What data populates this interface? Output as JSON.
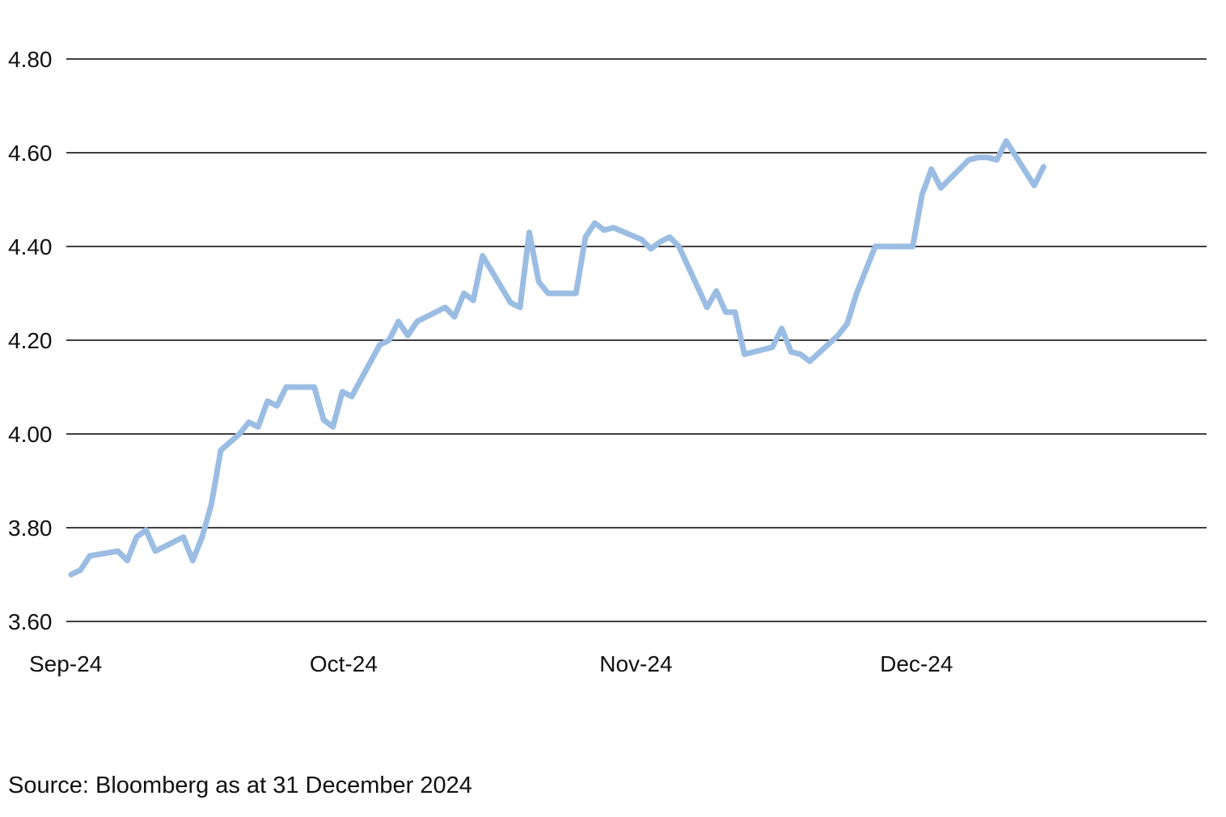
{
  "source_note": "Source: Bloomberg as at 31 December 2024",
  "chart_data": {
    "type": "line",
    "title": "",
    "xlabel": "",
    "ylabel": "",
    "ylim": [
      3.6,
      4.8
    ],
    "yticks": [
      3.6,
      3.8,
      4.0,
      4.2,
      4.4,
      4.6,
      4.8
    ],
    "ytick_labels": [
      "3.60",
      "3.80",
      "4.00",
      "4.20",
      "4.40",
      "4.60",
      "4.80"
    ],
    "xlim": [
      "2024-09-01",
      "2024-12-31"
    ],
    "xticks": [
      {
        "label": "Sep-24",
        "date": "2024-09-01"
      },
      {
        "label": "Oct-24",
        "date": "2024-10-01"
      },
      {
        "label": "Nov-24",
        "date": "2024-11-01"
      },
      {
        "label": "Dec-24",
        "date": "2024-12-01"
      }
    ],
    "grid": true,
    "legend": "none",
    "series": [
      {
        "color": "#9bbde3",
        "points": [
          [
            "2024-09-01",
            3.7
          ],
          [
            "2024-09-02",
            3.71
          ],
          [
            "2024-09-03",
            3.74
          ],
          [
            "2024-09-06",
            3.75
          ],
          [
            "2024-09-07",
            3.73
          ],
          [
            "2024-09-08",
            3.78
          ],
          [
            "2024-09-09",
            3.795
          ],
          [
            "2024-09-10",
            3.75
          ],
          [
            "2024-09-13",
            3.78
          ],
          [
            "2024-09-14",
            3.73
          ],
          [
            "2024-09-15",
            3.78
          ],
          [
            "2024-09-16",
            3.85
          ],
          [
            "2024-09-17",
            3.965
          ],
          [
            "2024-09-19",
            4.0
          ],
          [
            "2024-09-20",
            4.025
          ],
          [
            "2024-09-21",
            4.015
          ],
          [
            "2024-09-22",
            4.07
          ],
          [
            "2024-09-23",
            4.06
          ],
          [
            "2024-09-24",
            4.1
          ],
          [
            "2024-09-27",
            4.1
          ],
          [
            "2024-09-28",
            4.03
          ],
          [
            "2024-09-29",
            4.015
          ],
          [
            "2024-09-30",
            4.09
          ],
          [
            "2024-10-01",
            4.08
          ],
          [
            "2024-10-04",
            4.19
          ],
          [
            "2024-10-05",
            4.2
          ],
          [
            "2024-10-06",
            4.24
          ],
          [
            "2024-10-07",
            4.21
          ],
          [
            "2024-10-08",
            4.24
          ],
          [
            "2024-10-11",
            4.27
          ],
          [
            "2024-10-12",
            4.25
          ],
          [
            "2024-10-13",
            4.3
          ],
          [
            "2024-10-14",
            4.285
          ],
          [
            "2024-10-15",
            4.38
          ],
          [
            "2024-10-18",
            4.28
          ],
          [
            "2024-10-19",
            4.27
          ],
          [
            "2024-10-20",
            4.43
          ],
          [
            "2024-10-21",
            4.325
          ],
          [
            "2024-10-22",
            4.3
          ],
          [
            "2024-10-25",
            4.3
          ],
          [
            "2024-10-26",
            4.42
          ],
          [
            "2024-10-27",
            4.45
          ],
          [
            "2024-10-28",
            4.435
          ],
          [
            "2024-10-29",
            4.44
          ],
          [
            "2024-11-01",
            4.415
          ],
          [
            "2024-11-02",
            4.395
          ],
          [
            "2024-11-03",
            4.41
          ],
          [
            "2024-11-04",
            4.42
          ],
          [
            "2024-11-05",
            4.4
          ],
          [
            "2024-11-08",
            4.27
          ],
          [
            "2024-11-09",
            4.305
          ],
          [
            "2024-11-10",
            4.26
          ],
          [
            "2024-11-11",
            4.26
          ],
          [
            "2024-11-12",
            4.17
          ],
          [
            "2024-11-15",
            4.185
          ],
          [
            "2024-11-16",
            4.225
          ],
          [
            "2024-11-17",
            4.175
          ],
          [
            "2024-11-18",
            4.17
          ],
          [
            "2024-11-19",
            4.155
          ],
          [
            "2024-11-22",
            4.21
          ],
          [
            "2024-11-23",
            4.235
          ],
          [
            "2024-11-24",
            4.3
          ],
          [
            "2024-11-26",
            4.4
          ],
          [
            "2024-11-29",
            4.4
          ],
          [
            "2024-11-30",
            4.4
          ],
          [
            "2024-12-01",
            4.51
          ],
          [
            "2024-12-02",
            4.565
          ],
          [
            "2024-12-03",
            4.525
          ],
          [
            "2024-12-06",
            4.585
          ],
          [
            "2024-12-07",
            4.59
          ],
          [
            "2024-12-08",
            4.59
          ],
          [
            "2024-12-09",
            4.585
          ],
          [
            "2024-12-10",
            4.625
          ],
          [
            "2024-12-13",
            4.53
          ],
          [
            "2024-12-14",
            4.57
          ]
        ]
      }
    ]
  }
}
